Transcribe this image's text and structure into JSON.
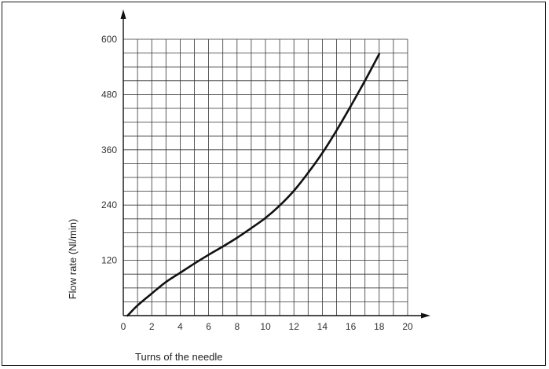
{
  "chart_data": {
    "type": "line",
    "xlabel": "Turns of the needle",
    "ylabel": "Flow rate (Nl/min)",
    "xlim": [
      0,
      20
    ],
    "ylim": [
      0,
      600
    ],
    "xticks": [
      0,
      2,
      4,
      6,
      8,
      10,
      12,
      14,
      16,
      18,
      20
    ],
    "yticks": [
      120,
      240,
      360,
      480,
      600
    ],
    "grid": true,
    "series": [
      {
        "x": [
          0.3,
          1,
          2,
          3,
          4,
          5,
          6,
          7,
          8,
          9,
          10,
          11,
          12,
          13,
          14,
          15,
          16,
          17,
          18
        ],
        "y": [
          0,
          22,
          48,
          73,
          93,
          113,
          132,
          150,
          169,
          190,
          212,
          239,
          271,
          310,
          353,
          402,
          455,
          510,
          568
        ]
      }
    ],
    "colors": {
      "line": "#111111",
      "grid": "#333333",
      "axis": "#111111"
    }
  }
}
